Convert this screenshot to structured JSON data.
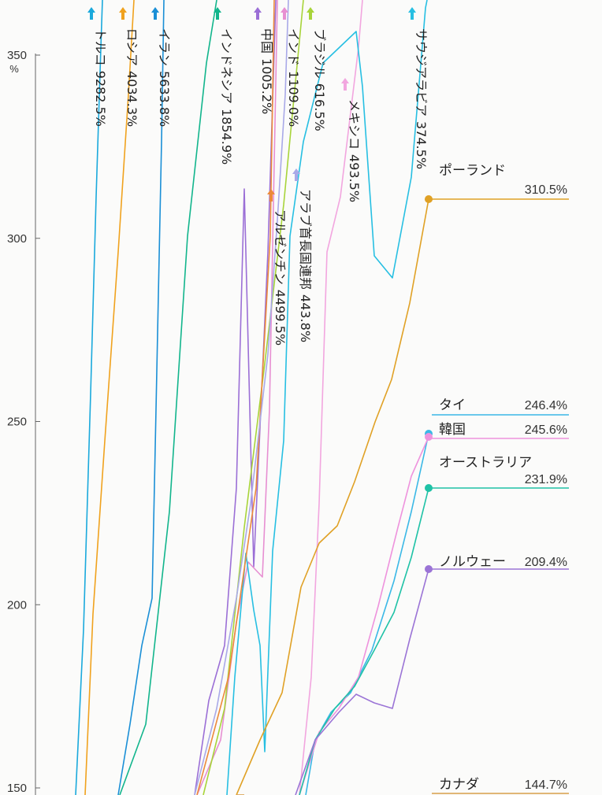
{
  "chart_data": {
    "type": "line",
    "y_unit": "%",
    "ylim": [
      150,
      350
    ],
    "yticks": [
      150,
      200,
      250,
      300,
      350
    ],
    "grid": false,
    "off_chart_series": [
      {
        "name": "トルコ",
        "value_label": "9282.5%",
        "color": "#1aa9dc"
      },
      {
        "name": "ロシア",
        "value_label": "4034.3%",
        "color": "#f0a21e"
      },
      {
        "name": "イラン",
        "value_label": "5633.8%",
        "color": "#1a8fd6"
      },
      {
        "name": "インドネシア",
        "value_label": "1854.9%",
        "color": "#12b58c"
      },
      {
        "name": "中国",
        "value_label": "1005.2%",
        "color": "#9b6fd6"
      },
      {
        "name": "インド",
        "value_label": "1109.0%",
        "color": "#e78fd2"
      },
      {
        "name": "ブラジル",
        "value_label": "616.5%",
        "color": "#a8d43a"
      },
      {
        "name": "メキシコ",
        "value_label": "493.5%",
        "color": "#f2a6df"
      },
      {
        "name": "サウジアラビア",
        "value_label": "374.5%",
        "color": "#27bfe2"
      },
      {
        "name": "アルゼンチン",
        "value_label": "4499.5%",
        "color": "#ec8a3a"
      },
      {
        "name": "アラブ首長国連邦",
        "value_label": "443.8%",
        "color": "#a9a9e8"
      }
    ],
    "endpoint_series": [
      {
        "name": "ポーランド",
        "value": 310.5,
        "value_label": "310.5%",
        "color": "#e0a125"
      },
      {
        "name": "タイ",
        "value": 246.4,
        "value_label": "246.4%",
        "color": "#3ab8e6"
      },
      {
        "name": "韓国",
        "value": 245.6,
        "value_label": "245.6%",
        "color": "#ee93dd"
      },
      {
        "name": "オーストラリア",
        "value": 231.9,
        "value_label": "231.9%",
        "color": "#1fc2a6"
      },
      {
        "name": "ノルウェー",
        "value": 209.4,
        "value_label": "209.4%",
        "color": "#9b74d6"
      },
      {
        "name": "カナダ",
        "value": 144.7,
        "value_label": "144.7%",
        "color": "#d8a04a"
      }
    ]
  }
}
